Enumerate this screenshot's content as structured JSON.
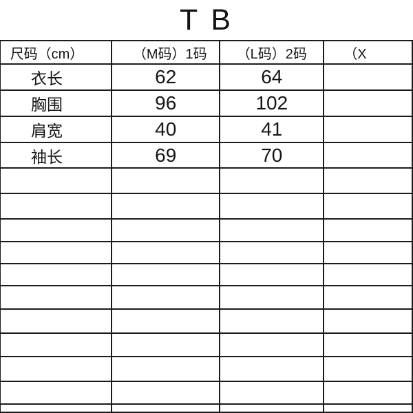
{
  "title": "T B",
  "table": {
    "header": {
      "size_label": "尺码（cm）",
      "size_m": "（M码）1码",
      "size_l": "（L码）2码",
      "size_xl_partial": "（X"
    },
    "rows": [
      {
        "label": "衣长",
        "m": "62",
        "l": "64",
        "xl": ""
      },
      {
        "label": "胸围",
        "m": "96",
        "l": "102",
        "xl": ""
      },
      {
        "label": "肩宽",
        "m": "40",
        "l": "41",
        "xl": ""
      },
      {
        "label": "袖长",
        "m": "69",
        "l": "70",
        "xl": ""
      }
    ],
    "empty_row_count": 11
  }
}
